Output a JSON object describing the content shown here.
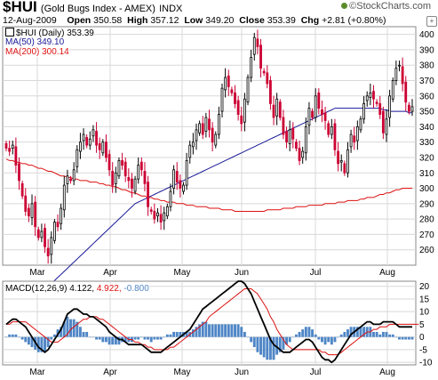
{
  "header": {
    "symbol": "$HUI",
    "name": "(Gold Bugs Index - AMEX)",
    "exchange": "INDX",
    "brand": "©StockCharts.com",
    "date": "12-Aug-2009",
    "open_label": "Open",
    "open": "350.58",
    "high_label": "High",
    "high": "357.12",
    "low_label": "Low",
    "low": "349.20",
    "close_label": "Close",
    "close": "353.39",
    "chg_label": "Chg",
    "chg": "+2.81 (+0.80%)"
  },
  "legend": {
    "price": "$HUI (Daily) 353.39",
    "ma50": "MA(50) 349.10",
    "ma200": "MA(200) 300.14",
    "macd": "MACD(12,26,9)",
    "macd_value": "4.122,",
    "signal_value": "4.922,",
    "hist_value": "-0.800"
  },
  "colors": {
    "up": "#000000",
    "down": "#cc0033",
    "ma50": "#1a1a99",
    "ma200": "#dd1111",
    "macd": "#000000",
    "signal": "#dd1111",
    "histogram": "#4f86c6",
    "grid": "#d8d8d8"
  },
  "chart_data": [
    {
      "type": "candlestick",
      "x_labels": [
        "Mar",
        "Apr",
        "May",
        "Jun",
        "Jul",
        "Aug"
      ],
      "ylim": [
        250,
        405
      ],
      "y_ticks": [
        260,
        270,
        280,
        290,
        300,
        310,
        320,
        330,
        340,
        350,
        360,
        370,
        380,
        390,
        400
      ],
      "close": [
        326,
        324,
        328,
        315,
        305,
        295,
        285,
        282,
        290,
        275,
        268,
        272,
        262,
        256,
        268,
        278,
        275,
        287,
        302,
        308,
        305,
        312,
        325,
        330,
        335,
        328,
        332,
        338,
        328,
        325,
        330,
        320,
        312,
        302,
        310,
        318,
        315,
        308,
        305,
        300,
        306,
        315,
        312,
        303,
        288,
        285,
        280,
        284,
        278,
        284,
        288,
        298,
        312,
        304,
        300,
        302,
        318,
        328,
        330,
        338,
        342,
        335,
        346,
        338,
        330,
        335,
        348,
        365,
        372,
        366,
        362,
        355,
        348,
        342,
        358,
        372,
        385,
        398,
        392,
        378,
        375,
        368,
        355,
        346,
        358,
        346,
        335,
        330,
        338,
        332,
        326,
        318,
        324,
        340,
        352,
        346,
        360,
        352,
        348,
        344,
        335,
        340,
        325,
        316,
        318,
        310,
        325,
        335,
        330,
        340,
        345,
        355,
        360,
        362,
        358,
        355,
        348,
        336,
        345,
        360,
        370,
        378,
        380,
        368,
        356,
        350,
        353
      ],
      "ma50": [
        210,
        212,
        214,
        216,
        218,
        220,
        222,
        224,
        226,
        228,
        230,
        232,
        234,
        236,
        238,
        240,
        242,
        244,
        246,
        248,
        250,
        252,
        254,
        256,
        258,
        260,
        262,
        264,
        266,
        268,
        270,
        272,
        274,
        276,
        278,
        280,
        282,
        284,
        286,
        288,
        290,
        291,
        292,
        293,
        294,
        295,
        296,
        297,
        298,
        299,
        300,
        301,
        302,
        303,
        304,
        305,
        306,
        307,
        308,
        309,
        310,
        311,
        312,
        313,
        314,
        315,
        316,
        317,
        318,
        319,
        320,
        321,
        322,
        323,
        324,
        325,
        326,
        327,
        328,
        329,
        330,
        331,
        332,
        333,
        334,
        335,
        336,
        337,
        338,
        339,
        340,
        341,
        342,
        343,
        344,
        345,
        346,
        347,
        348,
        349,
        350,
        351,
        352,
        352,
        352,
        352,
        352,
        352,
        352,
        352,
        352,
        352,
        352,
        352,
        352,
        352,
        352,
        351,
        351,
        350,
        350,
        350,
        350,
        350,
        350,
        349,
        349
      ],
      "ma200": [
        319,
        318,
        318,
        317,
        317,
        316,
        316,
        315,
        315,
        314,
        313,
        313,
        312,
        311,
        311,
        310,
        309,
        308,
        308,
        307,
        307,
        306,
        306,
        305,
        305,
        305,
        304,
        304,
        304,
        303,
        303,
        302,
        302,
        301,
        301,
        300,
        299,
        299,
        298,
        297,
        297,
        296,
        295,
        295,
        294,
        294,
        293,
        293,
        292,
        292,
        291,
        291,
        291,
        290,
        290,
        290,
        289,
        289,
        289,
        288,
        288,
        288,
        288,
        287,
        287,
        287,
        287,
        286,
        286,
        286,
        286,
        285,
        285,
        285,
        285,
        285,
        285,
        285,
        285,
        285,
        285,
        286,
        286,
        286,
        286,
        286,
        287,
        287,
        287,
        287,
        288,
        288,
        288,
        288,
        289,
        289,
        289,
        289,
        289,
        290,
        290,
        290,
        290,
        291,
        291,
        291,
        292,
        292,
        292,
        292,
        293,
        293,
        294,
        294,
        294,
        295,
        296,
        296,
        297,
        297,
        298,
        299,
        299,
        300,
        300,
        300,
        300
      ],
      "series": [
        {
          "name": "$HUI (Daily)"
        },
        {
          "name": "MA(50)"
        },
        {
          "name": "MA(200)"
        }
      ]
    },
    {
      "type": "line",
      "x_labels": [
        "Mar",
        "Apr",
        "May",
        "Jun",
        "Jul",
        "Aug"
      ],
      "ylim": [
        -11,
        22
      ],
      "y_ticks": [
        -10,
        -5,
        0,
        5,
        10,
        15,
        20
      ],
      "macd": [
        5,
        6,
        7,
        7,
        6,
        5,
        4,
        2,
        0,
        -2,
        -4,
        -5,
        -6,
        -5,
        -3,
        -1,
        1,
        3,
        6,
        9,
        10,
        11,
        11,
        10,
        9,
        9,
        8,
        8,
        7,
        6,
        5,
        4,
        2,
        1,
        0,
        -1,
        -1,
        -2,
        -3,
        -3,
        -3,
        -3,
        -3,
        -4,
        -5,
        -6,
        -6,
        -6,
        -6,
        -5,
        -4,
        -3,
        -2,
        -1,
        0,
        1,
        2,
        3,
        5,
        7,
        9,
        11,
        12,
        13,
        14,
        15,
        16,
        17,
        18,
        19,
        20,
        21,
        22,
        22,
        21,
        19,
        17,
        14,
        11,
        8,
        5,
        2,
        -1,
        -3,
        -4,
        -5,
        -6,
        -6,
        -6,
        -5,
        -4,
        -3,
        -2,
        -1,
        -1,
        -2,
        -4,
        -6,
        -8,
        -9,
        -9,
        -10,
        -9,
        -7,
        -5,
        -3,
        -1,
        1,
        2,
        3,
        4,
        5,
        6,
        6,
        5,
        5,
        5,
        6,
        6,
        6,
        6,
        5,
        4,
        4,
        4,
        4,
        4
      ],
      "signal": [
        5,
        5,
        6,
        6,
        6,
        6,
        6,
        5,
        4,
        3,
        2,
        1,
        0,
        -1,
        -2,
        -2,
        -2,
        -1,
        0,
        1,
        3,
        4,
        5,
        6,
        7,
        7,
        8,
        8,
        8,
        7,
        7,
        6,
        5,
        4,
        3,
        2,
        1,
        0,
        -1,
        -1,
        -2,
        -2,
        -3,
        -3,
        -4,
        -4,
        -5,
        -5,
        -5,
        -5,
        -5,
        -4,
        -4,
        -3,
        -2,
        -1,
        0,
        1,
        2,
        3,
        4,
        5,
        6,
        8,
        9,
        10,
        11,
        12,
        13,
        14,
        15,
        16,
        17,
        18,
        19,
        19,
        19,
        18,
        17,
        15,
        13,
        11,
        8,
        6,
        3,
        1,
        -1,
        -3,
        -4,
        -5,
        -5,
        -5,
        -5,
        -5,
        -5,
        -5,
        -5,
        -5,
        -6,
        -6,
        -7,
        -7,
        -7,
        -7,
        -6,
        -5,
        -4,
        -3,
        -2,
        -1,
        0,
        1,
        2,
        2,
        3,
        3,
        4,
        4,
        4,
        5,
        5,
        5,
        5,
        5,
        5,
        5,
        5,
        5,
        5
      ],
      "series": [
        {
          "name": "MACD(12,26,9)"
        }
      ]
    }
  ]
}
